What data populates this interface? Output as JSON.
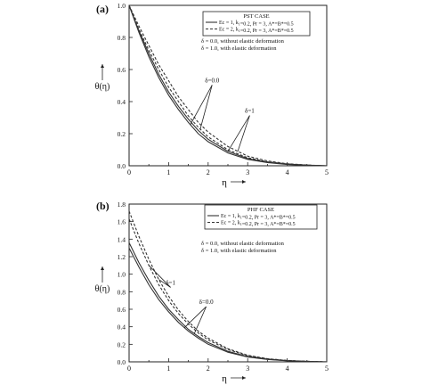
{
  "chart_data": [
    {
      "type": "line",
      "panel_label": "(a)",
      "xlabel": "η",
      "ylabel": "θ(η)",
      "xlim": [
        0,
        5
      ],
      "ylim": [
        0,
        1.0
      ],
      "xticks": [
        "0",
        "1",
        "2",
        "3",
        "4",
        "5"
      ],
      "yticks": [
        "0.0",
        "0.2",
        "0.4",
        "0.6",
        "0.8",
        "1.0"
      ],
      "legend_title": "PST CASE",
      "legend_entries": [
        {
          "style": "solid",
          "text": "Ec = 1, k1=0.2, Pr = 3,  A*=B*=0.5"
        },
        {
          "style": "dashed",
          "text": "Ec = 2, k1=0.2, Pr = 3,  A*=B*=0.5"
        }
      ],
      "notes": [
        "δ = 0.0,  without elastic deformation",
        "δ = 1.0,  with elastic deformation"
      ],
      "annotations": [
        {
          "text": "δ=0.0",
          "x": 2.1,
          "y": 0.52
        },
        {
          "text": "δ=1",
          "x": 3.05,
          "y": 0.33
        }
      ],
      "series": [
        {
          "style": "solid",
          "x": [
            0,
            0.25,
            0.5,
            0.75,
            1.0,
            1.25,
            1.5,
            1.75,
            2.0,
            2.5,
            3.0,
            3.5,
            4.0,
            4.5,
            5.0
          ],
          "y": [
            1.0,
            0.83,
            0.68,
            0.55,
            0.44,
            0.35,
            0.27,
            0.2,
            0.15,
            0.08,
            0.04,
            0.02,
            0.008,
            0.003,
            0.0
          ]
        },
        {
          "style": "solid",
          "x": [
            0,
            0.25,
            0.5,
            0.75,
            1.0,
            1.25,
            1.5,
            1.75,
            2.0,
            2.5,
            3.0,
            3.5,
            4.0,
            4.5,
            5.0
          ],
          "y": [
            1.0,
            0.84,
            0.7,
            0.57,
            0.46,
            0.37,
            0.29,
            0.22,
            0.165,
            0.09,
            0.045,
            0.022,
            0.01,
            0.004,
            0.0
          ]
        },
        {
          "style": "dashed",
          "x": [
            0,
            0.25,
            0.5,
            0.75,
            1.0,
            1.25,
            1.5,
            1.75,
            2.0,
            2.5,
            3.0,
            3.5,
            4.0,
            4.5,
            5.0
          ],
          "y": [
            1.0,
            0.85,
            0.72,
            0.6,
            0.49,
            0.4,
            0.31,
            0.24,
            0.18,
            0.1,
            0.05,
            0.025,
            0.011,
            0.004,
            0.0
          ]
        },
        {
          "style": "dashed",
          "x": [
            0,
            0.25,
            0.5,
            0.75,
            1.0,
            1.25,
            1.5,
            1.75,
            2.0,
            2.5,
            3.0,
            3.5,
            4.0,
            4.5,
            5.0
          ],
          "y": [
            1.0,
            0.87,
            0.75,
            0.63,
            0.53,
            0.43,
            0.35,
            0.27,
            0.21,
            0.12,
            0.06,
            0.03,
            0.013,
            0.005,
            0.0
          ]
        }
      ]
    },
    {
      "type": "line",
      "panel_label": "(b)",
      "xlabel": "η",
      "ylabel": "θ(η)",
      "xlim": [
        0,
        5
      ],
      "ylim": [
        0,
        1.8
      ],
      "xticks": [
        "0",
        "1",
        "2",
        "3",
        "4",
        "5"
      ],
      "yticks": [
        "0.0",
        "0.2",
        "0.4",
        "0.6",
        "0.8",
        "1.0",
        "1.2",
        "1.4",
        "1.6",
        "1.8"
      ],
      "legend_title": "PHF CASE",
      "legend_entries": [
        {
          "style": "solid",
          "text": "Ec = 1, k1=0.2, Pr = 3,  A*=B*=0.5"
        },
        {
          "style": "dashed",
          "text": "Ec = 2, k1=0.2, Pr = 3,  A*=B*=0.5"
        }
      ],
      "notes": [
        "δ = 0.0,  without elastic deformation",
        "δ = 1.0,  with elastic deformation"
      ],
      "annotations": [
        {
          "text": "δ=1",
          "x": 1.05,
          "y": 0.88
        },
        {
          "text": "δ=0.0",
          "x": 1.95,
          "y": 0.66
        }
      ],
      "series": [
        {
          "style": "solid",
          "x": [
            0,
            0.25,
            0.5,
            0.75,
            1.0,
            1.25,
            1.5,
            1.75,
            2.0,
            2.5,
            3.0,
            3.5,
            4.0,
            4.5,
            5.0
          ],
          "y": [
            1.3,
            1.08,
            0.88,
            0.71,
            0.57,
            0.45,
            0.35,
            0.27,
            0.2,
            0.11,
            0.055,
            0.027,
            0.012,
            0.005,
            0.0
          ]
        },
        {
          "style": "solid",
          "x": [
            0,
            0.25,
            0.5,
            0.75,
            1.0,
            1.25,
            1.5,
            1.75,
            2.0,
            2.5,
            3.0,
            3.5,
            4.0,
            4.5,
            5.0
          ],
          "y": [
            1.36,
            1.13,
            0.93,
            0.75,
            0.6,
            0.48,
            0.37,
            0.29,
            0.22,
            0.12,
            0.06,
            0.03,
            0.013,
            0.005,
            0.0
          ]
        },
        {
          "style": "dashed",
          "x": [
            0,
            0.25,
            0.5,
            0.75,
            1.0,
            1.25,
            1.5,
            1.75,
            2.0,
            2.5,
            3.0,
            3.5,
            4.0,
            4.5,
            5.0
          ],
          "y": [
            1.63,
            1.35,
            1.1,
            0.88,
            0.7,
            0.55,
            0.43,
            0.33,
            0.25,
            0.14,
            0.07,
            0.034,
            0.015,
            0.006,
            0.0
          ]
        },
        {
          "style": "dashed",
          "x": [
            0,
            0.25,
            0.5,
            0.75,
            1.0,
            1.25,
            1.5,
            1.75,
            2.0,
            2.5,
            3.0,
            3.5,
            4.0,
            4.5,
            5.0
          ],
          "y": [
            1.72,
            1.43,
            1.17,
            0.94,
            0.75,
            0.59,
            0.46,
            0.35,
            0.27,
            0.15,
            0.075,
            0.036,
            0.016,
            0.006,
            0.0
          ]
        }
      ]
    }
  ]
}
